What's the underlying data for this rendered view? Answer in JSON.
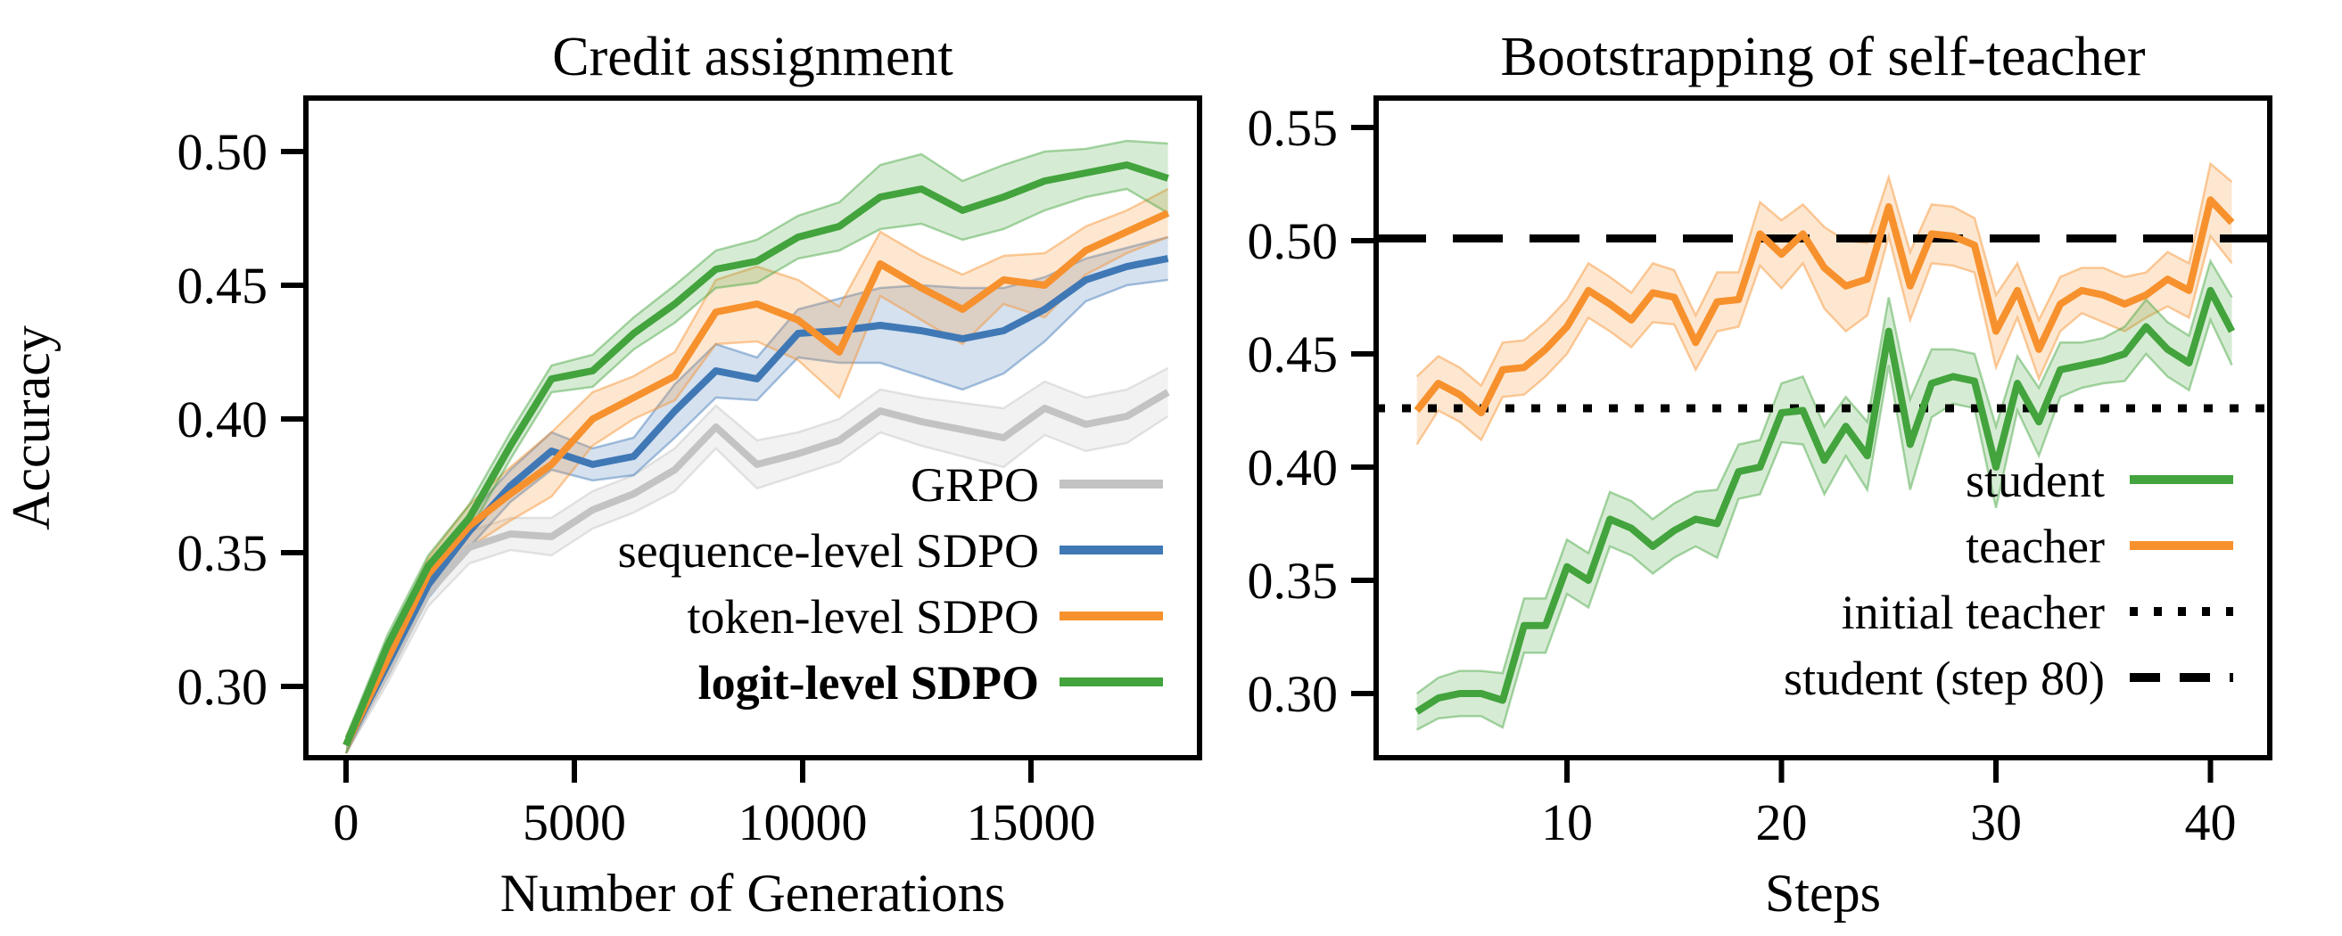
{
  "figure": {
    "background": "#ffffff"
  },
  "colors": {
    "gray": "#c3c3c3",
    "blue": "#3f78b5",
    "orange": "#f7912d",
    "green": "#43a33d",
    "black": "#000000"
  },
  "chart_data": [
    {
      "type": "line",
      "title": "Credit assignment",
      "xlabel": "Number of Generations",
      "ylabel": "Accuracy",
      "grid": false,
      "legend_position": "lower right",
      "xlim": [
        -900,
        18700
      ],
      "ylim": [
        0.273,
        0.52
      ],
      "xticks": [
        0,
        5000,
        10000,
        15000
      ],
      "xtick_labels": [
        "0",
        "5000",
        "10000",
        "15000"
      ],
      "yticks": [
        0.3,
        0.35,
        0.4,
        0.45,
        0.5
      ],
      "ytick_labels": [
        "0.30",
        "0.35",
        "0.40",
        "0.45",
        "0.50"
      ],
      "x": [
        0,
        900,
        1800,
        2700,
        3600,
        4500,
        5400,
        6300,
        7200,
        8100,
        9000,
        9900,
        10800,
        11700,
        12600,
        13500,
        14400,
        15300,
        16200,
        17100,
        18000
      ],
      "series": [
        {
          "name": "GRPO",
          "color": "#c3c3c3",
          "bold": false,
          "values": [
            0.278,
            0.305,
            0.335,
            0.352,
            0.357,
            0.356,
            0.366,
            0.372,
            0.381,
            0.397,
            0.383,
            0.387,
            0.392,
            0.403,
            0.399,
            0.396,
            0.393,
            0.404,
            0.398,
            0.401,
            0.41
          ],
          "band": [
            0.003,
            0.004,
            0.005,
            0.006,
            0.006,
            0.007,
            0.007,
            0.007,
            0.008,
            0.008,
            0.009,
            0.008,
            0.008,
            0.008,
            0.009,
            0.01,
            0.011,
            0.01,
            0.01,
            0.01,
            0.009
          ]
        },
        {
          "name": "sequence-level SDPO",
          "color": "#3f78b5",
          "bold": false,
          "values": [
            0.278,
            0.308,
            0.338,
            0.358,
            0.375,
            0.388,
            0.383,
            0.386,
            0.403,
            0.418,
            0.415,
            0.432,
            0.433,
            0.435,
            0.433,
            0.43,
            0.433,
            0.441,
            0.452,
            0.457,
            0.46
          ],
          "band": [
            0.003,
            0.004,
            0.005,
            0.006,
            0.006,
            0.007,
            0.006,
            0.007,
            0.01,
            0.01,
            0.008,
            0.009,
            0.012,
            0.014,
            0.017,
            0.019,
            0.016,
            0.012,
            0.008,
            0.007,
            0.008
          ]
        },
        {
          "name": "token-level SDPO",
          "color": "#f7912d",
          "bold": false,
          "values": [
            0.278,
            0.31,
            0.342,
            0.36,
            0.372,
            0.383,
            0.4,
            0.408,
            0.416,
            0.44,
            0.443,
            0.437,
            0.425,
            0.458,
            0.449,
            0.441,
            0.452,
            0.45,
            0.463,
            0.47,
            0.477
          ],
          "band": [
            0.003,
            0.005,
            0.006,
            0.008,
            0.01,
            0.012,
            0.01,
            0.008,
            0.009,
            0.012,
            0.014,
            0.015,
            0.017,
            0.012,
            0.012,
            0.013,
            0.009,
            0.012,
            0.009,
            0.008,
            0.009
          ]
        },
        {
          "name": "logit-level SDPO",
          "color": "#43a33d",
          "bold": true,
          "values": [
            0.278,
            0.315,
            0.345,
            0.363,
            0.39,
            0.415,
            0.418,
            0.432,
            0.443,
            0.456,
            0.459,
            0.468,
            0.472,
            0.483,
            0.486,
            0.478,
            0.483,
            0.489,
            0.492,
            0.495,
            0.49
          ],
          "band": [
            0.003,
            0.004,
            0.004,
            0.005,
            0.005,
            0.005,
            0.006,
            0.006,
            0.007,
            0.007,
            0.008,
            0.008,
            0.009,
            0.012,
            0.013,
            0.011,
            0.012,
            0.011,
            0.009,
            0.009,
            0.013
          ]
        }
      ],
      "legend": [
        {
          "label": "GRPO",
          "color": "#c3c3c3",
          "style": "solid",
          "bold": false
        },
        {
          "label": "sequence-level SDPO",
          "color": "#3f78b5",
          "style": "solid",
          "bold": false
        },
        {
          "label": "token-level SDPO",
          "color": "#f7912d",
          "style": "solid",
          "bold": false
        },
        {
          "label": "logit-level SDPO",
          "color": "#43a33d",
          "style": "solid",
          "bold": true
        }
      ]
    },
    {
      "type": "line",
      "title": "Bootstrapping of self-teacher",
      "xlabel": "Steps",
      "ylabel": "",
      "grid": false,
      "legend_position": "lower right",
      "xlim": [
        1,
        43
      ],
      "ylim": [
        0.272,
        0.562
      ],
      "xticks": [
        10,
        20,
        30,
        40
      ],
      "xtick_labels": [
        "10",
        "20",
        "30",
        "40"
      ],
      "yticks": [
        0.3,
        0.35,
        0.4,
        0.45,
        0.5,
        0.55
      ],
      "ytick_labels": [
        "0.30",
        "0.35",
        "0.40",
        "0.45",
        "0.50",
        "0.55"
      ],
      "x": [
        3,
        4,
        5,
        6,
        7,
        8,
        9,
        10,
        11,
        12,
        13,
        14,
        15,
        16,
        17,
        18,
        19,
        20,
        21,
        22,
        23,
        24,
        25,
        26,
        27,
        28,
        29,
        30,
        31,
        32,
        33,
        34,
        35,
        36,
        37,
        38,
        39,
        40,
        41
      ],
      "series": [
        {
          "name": "teacher",
          "color": "#f7912d",
          "bold": false,
          "values": [
            0.425,
            0.437,
            0.432,
            0.424,
            0.443,
            0.444,
            0.452,
            0.462,
            0.478,
            0.472,
            0.465,
            0.477,
            0.475,
            0.455,
            0.473,
            0.474,
            0.503,
            0.494,
            0.503,
            0.488,
            0.48,
            0.483,
            0.515,
            0.48,
            0.503,
            0.502,
            0.498,
            0.46,
            0.478,
            0.452,
            0.472,
            0.478,
            0.476,
            0.472,
            0.476,
            0.483,
            0.478,
            0.518,
            0.508
          ],
          "band": [
            0.015,
            0.012,
            0.012,
            0.012,
            0.012,
            0.012,
            0.012,
            0.012,
            0.012,
            0.012,
            0.012,
            0.013,
            0.012,
            0.012,
            0.013,
            0.012,
            0.014,
            0.015,
            0.013,
            0.018,
            0.02,
            0.016,
            0.013,
            0.015,
            0.013,
            0.013,
            0.012,
            0.016,
            0.012,
            0.013,
            0.012,
            0.01,
            0.012,
            0.012,
            0.01,
            0.012,
            0.012,
            0.016,
            0.018
          ]
        },
        {
          "name": "student",
          "color": "#43a33d",
          "bold": false,
          "values": [
            0.292,
            0.298,
            0.3,
            0.3,
            0.297,
            0.33,
            0.33,
            0.356,
            0.35,
            0.377,
            0.373,
            0.365,
            0.372,
            0.377,
            0.375,
            0.398,
            0.4,
            0.424,
            0.425,
            0.403,
            0.418,
            0.405,
            0.46,
            0.41,
            0.437,
            0.44,
            0.438,
            0.4,
            0.437,
            0.42,
            0.443,
            0.445,
            0.447,
            0.45,
            0.462,
            0.452,
            0.446,
            0.478,
            0.46
          ],
          "band": [
            0.008,
            0.009,
            0.01,
            0.01,
            0.012,
            0.012,
            0.012,
            0.012,
            0.012,
            0.012,
            0.012,
            0.012,
            0.012,
            0.012,
            0.015,
            0.012,
            0.012,
            0.013,
            0.015,
            0.015,
            0.013,
            0.015,
            0.015,
            0.02,
            0.015,
            0.012,
            0.012,
            0.018,
            0.012,
            0.015,
            0.012,
            0.01,
            0.01,
            0.012,
            0.012,
            0.012,
            0.012,
            0.013,
            0.015
          ]
        }
      ],
      "ref_lines": [
        {
          "label": "initial teacher",
          "style": "dotted",
          "value": 0.426,
          "color": "#000000"
        },
        {
          "label": "student (step 80)",
          "style": "dashed",
          "value": 0.501,
          "color": "#000000"
        }
      ],
      "legend": [
        {
          "label": "student",
          "color": "#43a33d",
          "style": "solid",
          "bold": false
        },
        {
          "label": "teacher",
          "color": "#f7912d",
          "style": "solid",
          "bold": false
        },
        {
          "label": "initial teacher",
          "color": "#000000",
          "style": "dotted",
          "bold": false
        },
        {
          "label": "student (step 80)",
          "color": "#000000",
          "style": "dashed",
          "bold": false
        }
      ]
    }
  ]
}
